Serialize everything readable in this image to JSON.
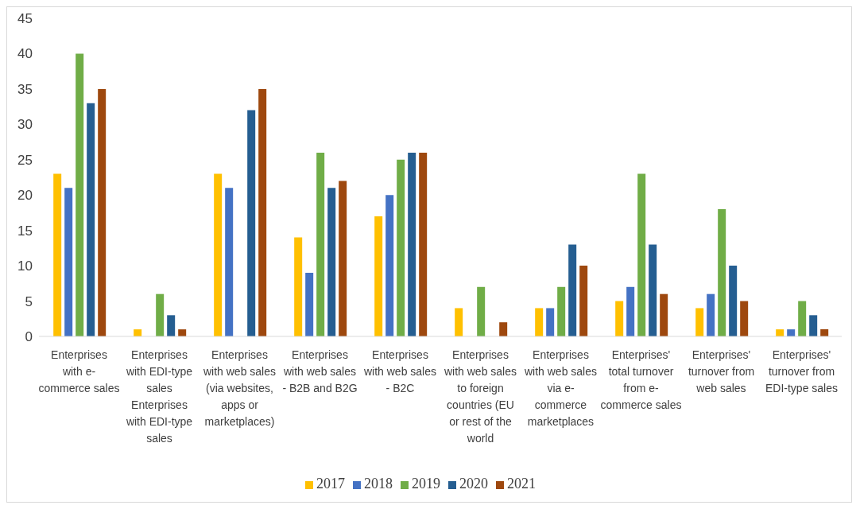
{
  "chart_data": {
    "type": "bar",
    "categories": [
      "Enterprises with e-commerce sales",
      "Enterprises with EDI-type sales Enterprises with EDI-type sales",
      "Enterprises with web sales (via websites, apps or marketplaces)",
      "Enterprises with web sales - B2B and B2G",
      "Enterprises with web sales - B2C",
      "Enterprises with web sales to foreign countries (EU or rest of the world",
      "Enterprises with web sales via e-commerce marketplaces",
      "Enterprises' total turnover from e-commerce sales",
      "Enterprises' turnover from web sales",
      "Enterprises' turnover from EDI-type sales"
    ],
    "series": [
      {
        "name": "2017",
        "color": "#ffc000",
        "values": [
          23,
          1,
          23,
          14,
          17,
          4,
          4,
          5,
          4,
          1
        ]
      },
      {
        "name": "2018",
        "color": "#4472c4",
        "values": [
          21,
          null,
          21,
          9,
          20,
          null,
          4,
          7,
          6,
          1
        ]
      },
      {
        "name": "2019",
        "color": "#70ad47",
        "values": [
          40,
          6,
          null,
          26,
          25,
          7,
          7,
          23,
          18,
          5
        ]
      },
      {
        "name": "2020",
        "color": "#255e91",
        "values": [
          33,
          3,
          32,
          21,
          26,
          null,
          13,
          13,
          10,
          3
        ]
      },
      {
        "name": "2021",
        "color": "#9e480e",
        "values": [
          35,
          1,
          35,
          22,
          26,
          2,
          10,
          6,
          5,
          1
        ]
      }
    ],
    "ylim": [
      0,
      45
    ],
    "yticks": [
      0,
      5,
      10,
      15,
      20,
      25,
      30,
      35,
      40,
      45
    ],
    "grid": false,
    "legend": "bottom"
  }
}
